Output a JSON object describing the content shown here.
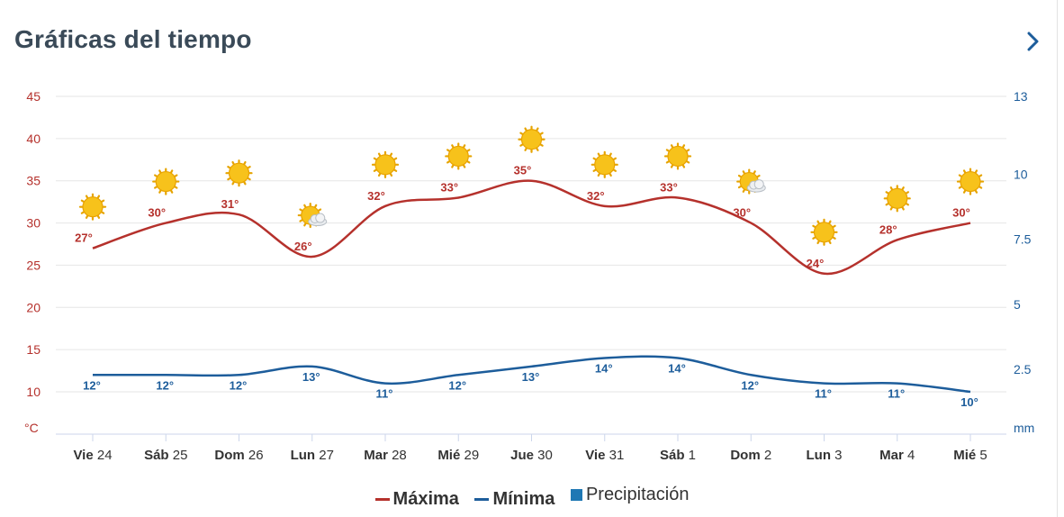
{
  "header": {
    "title": "Gráficas del tiempo",
    "next_icon": "chevron-right-icon"
  },
  "colors": {
    "max": "#b5312c",
    "min": "#1d5d9b",
    "precip": "#1f78b4",
    "left_axis": "#b5312c",
    "right_axis": "#1d5d9b",
    "grid": "#e6e6e6"
  },
  "legend": {
    "max": "Máxima",
    "min": "Mínima",
    "precip": "Precipitación"
  },
  "chart_data": {
    "type": "line",
    "categories": [
      {
        "day": "Vie",
        "num": "24"
      },
      {
        "day": "Sáb",
        "num": "25"
      },
      {
        "day": "Dom",
        "num": "26"
      },
      {
        "day": "Lun",
        "num": "27"
      },
      {
        "day": "Mar",
        "num": "28"
      },
      {
        "day": "Mié",
        "num": "29"
      },
      {
        "day": "Jue",
        "num": "30"
      },
      {
        "day": "Vie",
        "num": "31"
      },
      {
        "day": "Sáb",
        "num": "1"
      },
      {
        "day": "Dom",
        "num": "2"
      },
      {
        "day": "Lun",
        "num": "3"
      },
      {
        "day": "Mar",
        "num": "4"
      },
      {
        "day": "Mié",
        "num": "5"
      }
    ],
    "series": [
      {
        "name": "Máxima",
        "values": [
          27,
          30,
          31,
          26,
          32,
          33,
          35,
          32,
          33,
          30,
          24,
          28,
          30
        ],
        "labels": [
          "27°",
          "30°",
          "31°",
          "26°",
          "32°",
          "33°",
          "35°",
          "32°",
          "33°",
          "30°",
          "24°",
          "28°",
          "30°"
        ]
      },
      {
        "name": "Mínima",
        "values": [
          12,
          12,
          12,
          13,
          11,
          12,
          13,
          14,
          14,
          12,
          11,
          11,
          10
        ],
        "labels": [
          "12°",
          "12°",
          "12°",
          "13°",
          "11°",
          "12°",
          "13°",
          "14°",
          "14°",
          "12°",
          "11°",
          "11°",
          "10°"
        ]
      },
      {
        "name": "Precipitación",
        "values": [
          0,
          0,
          0,
          0,
          0,
          0,
          0,
          0,
          0,
          0,
          0,
          0,
          0
        ]
      }
    ],
    "icons": [
      "sun",
      "sun",
      "sun",
      "sun-cloud",
      "sun",
      "sun",
      "sun",
      "sun",
      "sun",
      "sun-cloud",
      "sun",
      "sun",
      "sun"
    ],
    "y_left": {
      "unit": "°C",
      "ticks": [
        "45",
        "40",
        "35",
        "30",
        "25",
        "20",
        "15",
        "10"
      ],
      "range": [
        10,
        45
      ]
    },
    "y_right": {
      "unit": "mm",
      "ticks": [
        "13",
        "10",
        "7.5",
        "5",
        "2.5"
      ],
      "range": [
        0,
        13
      ]
    },
    "grid": true,
    "legend_position": "bottom"
  }
}
